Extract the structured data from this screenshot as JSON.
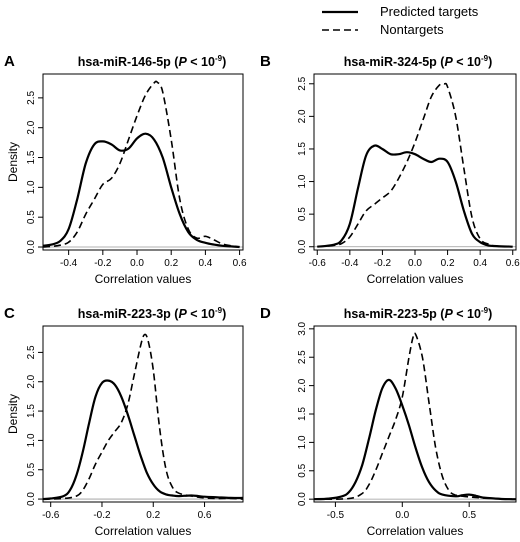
{
  "legend": {
    "items": [
      {
        "label": "Predicted targets",
        "style": "solid"
      },
      {
        "label": "Nontargets",
        "style": "dashed"
      }
    ]
  },
  "chart_data": [
    {
      "type": "line",
      "panel": "A",
      "title": "hsa-miR-146-5p (P < 10^-9)",
      "title_main": "hsa-miR-146-5p (",
      "title_p": "P",
      "title_lt": " < 10",
      "title_exp": "-9",
      "title_close": ")",
      "xlabel": "Correlation values",
      "ylabel": "Density",
      "xlim": [
        -0.55,
        0.62
      ],
      "ylim": [
        -0.05,
        2.9
      ],
      "xticks": [
        -0.4,
        -0.2,
        0.0,
        0.2,
        0.4,
        0.6
      ],
      "xtick_labels": [
        "-0.4",
        "-0.2",
        "0.0",
        "0.2",
        "0.4",
        "0.6"
      ],
      "yticks": [
        0.0,
        0.5,
        1.0,
        1.5,
        2.0,
        2.5
      ],
      "ytick_labels": [
        "0.0",
        "0.5",
        "1.0",
        "1.5",
        "2.0",
        "2.5"
      ],
      "series": [
        {
          "name": "Predicted targets",
          "style": "solid",
          "x": [
            -0.55,
            -0.5,
            -0.45,
            -0.4,
            -0.35,
            -0.3,
            -0.25,
            -0.2,
            -0.15,
            -0.1,
            -0.05,
            0.0,
            0.05,
            0.1,
            0.15,
            0.2,
            0.25,
            0.3,
            0.35,
            0.4,
            0.45,
            0.5,
            0.55,
            0.6
          ],
          "y": [
            0.02,
            0.04,
            0.1,
            0.3,
            0.8,
            1.4,
            1.72,
            1.77,
            1.72,
            1.62,
            1.65,
            1.82,
            1.9,
            1.8,
            1.5,
            1.0,
            0.55,
            0.25,
            0.12,
            0.07,
            0.04,
            0.02,
            0.01,
            0.0
          ]
        },
        {
          "name": "Nontargets",
          "style": "dashed",
          "x": [
            -0.55,
            -0.5,
            -0.45,
            -0.4,
            -0.35,
            -0.3,
            -0.25,
            -0.2,
            -0.15,
            -0.1,
            -0.05,
            0.0,
            0.05,
            0.1,
            0.12,
            0.15,
            0.2,
            0.25,
            0.3,
            0.35,
            0.4,
            0.45,
            0.5,
            0.55,
            0.6
          ],
          "y": [
            0.0,
            0.01,
            0.03,
            0.08,
            0.25,
            0.55,
            0.8,
            1.05,
            1.15,
            1.4,
            1.8,
            2.2,
            2.55,
            2.75,
            2.76,
            2.6,
            1.8,
            0.8,
            0.3,
            0.15,
            0.18,
            0.12,
            0.05,
            0.02,
            0.0
          ]
        }
      ]
    },
    {
      "type": "line",
      "panel": "B",
      "title": "hsa-miR-324-5p (P < 10^-9)",
      "title_main": "hsa-miR-324-5p (",
      "title_p": "P",
      "title_lt": " < 10",
      "title_exp": "-9",
      "title_close": ")",
      "xlabel": "Correlation values",
      "ylabel": "",
      "xlim": [
        -0.62,
        0.62
      ],
      "ylim": [
        -0.05,
        2.65
      ],
      "xticks": [
        -0.6,
        -0.4,
        -0.2,
        0.0,
        0.2,
        0.4,
        0.6
      ],
      "xtick_labels": [
        "-0.6",
        "-0.4",
        "-0.2",
        "0.0",
        "0.2",
        "0.4",
        "0.6"
      ],
      "yticks": [
        0.0,
        0.5,
        1.0,
        1.5,
        2.0,
        2.5
      ],
      "ytick_labels": [
        "0.0",
        "0.5",
        "1.0",
        "1.5",
        "2.0",
        "2.5"
      ],
      "series": [
        {
          "name": "Predicted targets",
          "style": "solid",
          "x": [
            -0.6,
            -0.5,
            -0.45,
            -0.4,
            -0.35,
            -0.3,
            -0.25,
            -0.2,
            -0.15,
            -0.1,
            -0.05,
            0.0,
            0.05,
            0.1,
            0.15,
            0.2,
            0.25,
            0.3,
            0.35,
            0.4,
            0.45,
            0.5,
            0.6
          ],
          "y": [
            0.0,
            0.03,
            0.1,
            0.35,
            0.9,
            1.4,
            1.55,
            1.5,
            1.42,
            1.42,
            1.45,
            1.42,
            1.35,
            1.3,
            1.35,
            1.3,
            1.0,
            0.55,
            0.2,
            0.07,
            0.02,
            0.01,
            0.0
          ]
        },
        {
          "name": "Nontargets",
          "style": "dashed",
          "x": [
            -0.6,
            -0.5,
            -0.45,
            -0.4,
            -0.35,
            -0.3,
            -0.25,
            -0.2,
            -0.15,
            -0.1,
            -0.05,
            0.0,
            0.05,
            0.1,
            0.15,
            0.18,
            0.2,
            0.25,
            0.3,
            0.35,
            0.4,
            0.45,
            0.5,
            0.6
          ],
          "y": [
            0.0,
            0.02,
            0.05,
            0.15,
            0.35,
            0.55,
            0.65,
            0.75,
            0.85,
            1.05,
            1.3,
            1.6,
            1.95,
            2.3,
            2.48,
            2.5,
            2.45,
            2.0,
            1.2,
            0.45,
            0.12,
            0.04,
            0.01,
            0.0
          ]
        }
      ]
    },
    {
      "type": "line",
      "panel": "C",
      "title": "hsa-miR-223-3p (P < 10^-9)",
      "title_main": "hsa-miR-223-3p (",
      "title_p": "P",
      "title_lt": " < 10",
      "title_exp": "-9",
      "title_close": ")",
      "xlabel": "Correlation values",
      "ylabel": "Density",
      "xlim": [
        -0.66,
        0.9
      ],
      "ylim": [
        -0.05,
        2.95
      ],
      "xticks": [
        -0.6,
        -0.2,
        0.2,
        0.6
      ],
      "xtick_labels": [
        "-0.6",
        "-0.2",
        "0.2",
        "0.6"
      ],
      "yticks": [
        0.0,
        0.5,
        1.0,
        1.5,
        2.0,
        2.5
      ],
      "ytick_labels": [
        "0.0",
        "0.5",
        "1.0",
        "1.5",
        "2.0",
        "2.5"
      ],
      "series": [
        {
          "name": "Predicted targets",
          "style": "solid",
          "x": [
            -0.66,
            -0.6,
            -0.5,
            -0.45,
            -0.4,
            -0.35,
            -0.3,
            -0.25,
            -0.2,
            -0.15,
            -0.1,
            -0.05,
            0.0,
            0.05,
            0.1,
            0.15,
            0.2,
            0.25,
            0.3,
            0.35,
            0.4,
            0.5,
            0.6,
            0.7,
            0.8,
            0.9
          ],
          "y": [
            0.0,
            0.01,
            0.05,
            0.15,
            0.4,
            0.8,
            1.3,
            1.75,
            1.98,
            2.02,
            1.95,
            1.75,
            1.45,
            1.1,
            0.75,
            0.45,
            0.25,
            0.13,
            0.08,
            0.06,
            0.05,
            0.06,
            0.04,
            0.03,
            0.02,
            0.02
          ]
        },
        {
          "name": "Nontargets",
          "style": "dashed",
          "x": [
            -0.66,
            -0.5,
            -0.4,
            -0.35,
            -0.3,
            -0.25,
            -0.2,
            -0.15,
            -0.1,
            -0.05,
            0.0,
            0.05,
            0.1,
            0.13,
            0.16,
            0.2,
            0.25,
            0.3,
            0.35,
            0.4,
            0.5,
            0.6,
            0.7,
            0.8,
            0.9
          ],
          "y": [
            0.0,
            0.01,
            0.05,
            0.15,
            0.35,
            0.6,
            0.8,
            1.0,
            1.15,
            1.3,
            1.6,
            2.1,
            2.6,
            2.8,
            2.7,
            2.2,
            1.2,
            0.5,
            0.2,
            0.1,
            0.05,
            0.02,
            0.01,
            0.01,
            0.0
          ]
        }
      ]
    },
    {
      "type": "line",
      "panel": "D",
      "title": "hsa-miR-223-5p (P < 10^-9)",
      "title_main": "hsa-miR-223-5p (",
      "title_p": "P",
      "title_lt": " < 10",
      "title_exp": "-9",
      "title_close": ")",
      "xlabel": "Correlation values",
      "ylabel": "",
      "xlim": [
        -0.66,
        0.85
      ],
      "ylim": [
        -0.05,
        3.05
      ],
      "xticks": [
        -0.5,
        0.0,
        0.5
      ],
      "xtick_labels": [
        "-0.5",
        "0.0",
        "0.5"
      ],
      "yticks": [
        0.0,
        0.5,
        1.0,
        1.5,
        2.0,
        2.5,
        3.0
      ],
      "ytick_labels": [
        "0.0",
        "0.5",
        "1.0",
        "1.5",
        "2.0",
        "2.5",
        "3.0"
      ],
      "series": [
        {
          "name": "Predicted targets",
          "style": "solid",
          "x": [
            -0.66,
            -0.55,
            -0.45,
            -0.4,
            -0.35,
            -0.3,
            -0.25,
            -0.2,
            -0.15,
            -0.1,
            -0.05,
            0.0,
            0.05,
            0.1,
            0.15,
            0.2,
            0.25,
            0.3,
            0.4,
            0.45,
            0.5,
            0.55,
            0.6,
            0.7,
            0.8,
            0.85
          ],
          "y": [
            0.0,
            0.01,
            0.05,
            0.12,
            0.3,
            0.6,
            1.05,
            1.55,
            1.95,
            2.1,
            1.95,
            1.65,
            1.3,
            0.9,
            0.55,
            0.3,
            0.15,
            0.08,
            0.05,
            0.07,
            0.08,
            0.06,
            0.03,
            0.01,
            0.0,
            0.0
          ]
        },
        {
          "name": "Nontargets",
          "style": "dashed",
          "x": [
            -0.66,
            -0.4,
            -0.3,
            -0.25,
            -0.2,
            -0.15,
            -0.1,
            -0.05,
            0.0,
            0.05,
            0.08,
            0.1,
            0.15,
            0.2,
            0.25,
            0.3,
            0.35,
            0.4,
            0.5,
            0.6,
            0.7,
            0.85
          ],
          "y": [
            0.0,
            0.01,
            0.1,
            0.25,
            0.5,
            0.8,
            1.1,
            1.4,
            1.8,
            2.5,
            2.85,
            2.9,
            2.5,
            1.7,
            0.9,
            0.4,
            0.15,
            0.07,
            0.04,
            0.02,
            0.01,
            0.0
          ]
        }
      ]
    }
  ]
}
